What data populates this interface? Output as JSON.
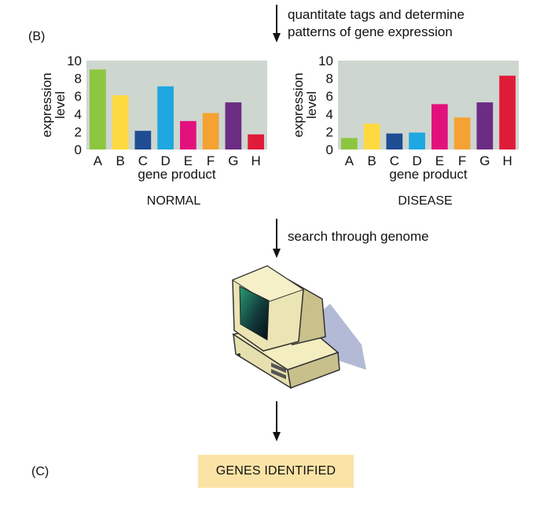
{
  "figure": {
    "label_b": "(B)",
    "label_c": "(C)",
    "step1": [
      "quantitate tags and determine",
      "patterns of gene expression"
    ],
    "step2": "search through genome",
    "result": "GENES IDENTIFIED"
  },
  "colors": {
    "panel_bg": "#cdd6cf",
    "A": "#8cc63f",
    "B": "#ffd940",
    "C": "#1e4d94",
    "D": "#1ea7e0",
    "E": "#e3117d",
    "F": "#f4a233",
    "G": "#6c2c84",
    "H": "#e01b39",
    "result_bg": "#fbe3a6"
  },
  "icons": [
    "arrow-down-icon",
    "computer-icon"
  ],
  "chart_data": [
    {
      "type": "bar",
      "title": "NORMAL",
      "xlabel": "gene product",
      "ylabel": "expression level",
      "ylim": [
        0,
        10
      ],
      "yticks": [
        "0",
        "2",
        "4",
        "6",
        "8",
        "10"
      ],
      "categories": [
        "A",
        "B",
        "C",
        "D",
        "E",
        "F",
        "G",
        "H"
      ],
      "values": [
        9.0,
        6.1,
        2.1,
        7.1,
        3.2,
        4.1,
        5.3,
        1.7
      ]
    },
    {
      "type": "bar",
      "title": "DISEASE",
      "xlabel": "gene product",
      "ylabel": "expression level",
      "ylim": [
        0,
        10
      ],
      "yticks": [
        "0",
        "2",
        "4",
        "6",
        "8",
        "10"
      ],
      "categories": [
        "A",
        "B",
        "C",
        "D",
        "E",
        "F",
        "G",
        "H"
      ],
      "values": [
        1.3,
        2.9,
        1.8,
        1.9,
        5.1,
        3.6,
        5.3,
        8.3
      ]
    }
  ]
}
